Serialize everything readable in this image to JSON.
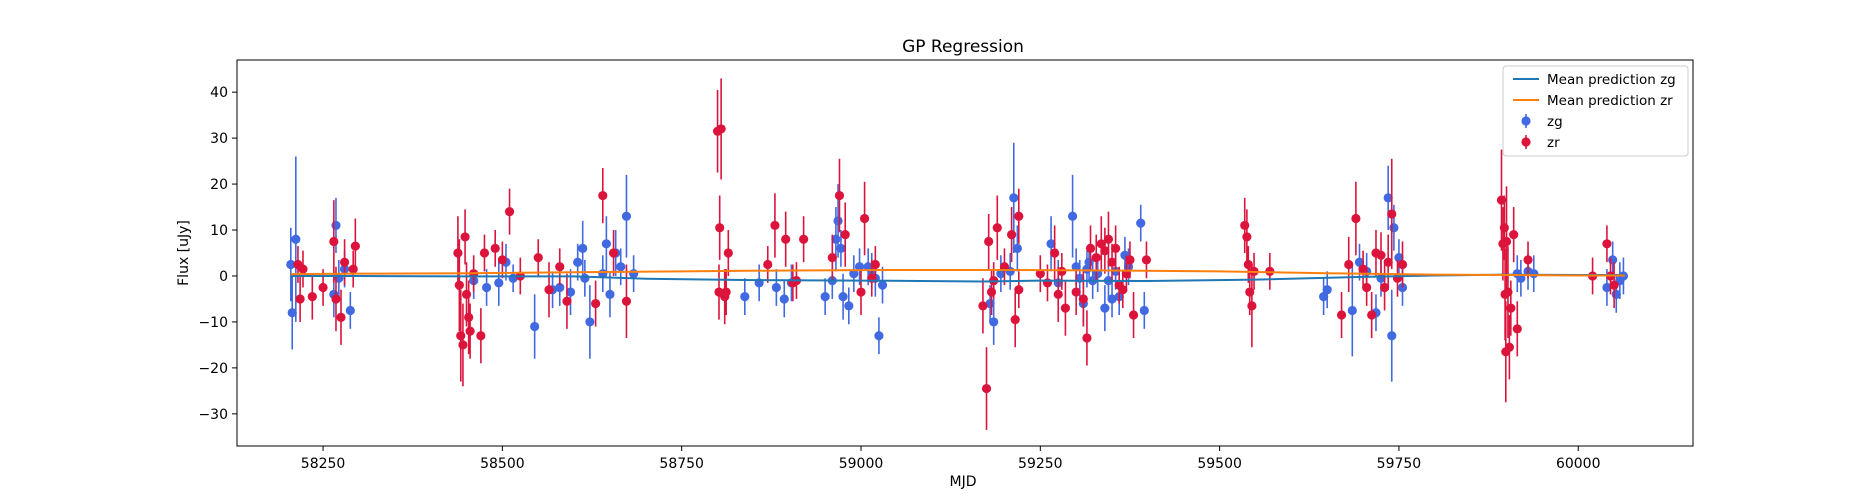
{
  "chart_data": {
    "type": "scatter",
    "title": "GP Regression",
    "xlabel": "MJD",
    "ylabel": "Flux [uJy]",
    "xlim": [
      58130,
      60160
    ],
    "ylim": [
      -37,
      47
    ],
    "xticks": [
      58250,
      58500,
      58750,
      59000,
      59250,
      59500,
      59750,
      60000
    ],
    "yticks": [
      -30,
      -20,
      -10,
      0,
      10,
      20,
      30,
      40
    ],
    "grid": false,
    "legend_position": "top-right",
    "lines": [
      {
        "name": "Mean prediction zg",
        "color": "#1f77b4",
        "x": [
          58205,
          58300,
          58450,
          58600,
          58700,
          58850,
          59000,
          59170,
          59250,
          59400,
          59550,
          59700,
          59800,
          59900,
          60000,
          60065
        ],
        "y": [
          0.0,
          0.0,
          -0.1,
          -0.1,
          -0.6,
          -0.9,
          -1.0,
          -1.2,
          -1.0,
          -1.1,
          -0.8,
          -0.2,
          0.1,
          0.3,
          0.2,
          0.2
        ]
      },
      {
        "name": "Mean prediction zr",
        "color": "#ff7f0e",
        "x": [
          58205,
          58300,
          58450,
          58600,
          58750,
          58900,
          59050,
          59200,
          59350,
          59500,
          59650,
          59800,
          59900,
          60000,
          60065
        ],
        "y": [
          0.4,
          0.5,
          0.6,
          0.8,
          1.0,
          1.2,
          1.3,
          1.3,
          1.2,
          1.0,
          0.6,
          0.3,
          0.2,
          0.1,
          0.1
        ]
      }
    ],
    "series": [
      {
        "name": "zg",
        "color": "#4169e1",
        "marker": "o",
        "points": [
          [
            58205,
            2.5,
            8
          ],
          [
            58207,
            -8,
            8
          ],
          [
            58212,
            8,
            18
          ],
          [
            58265,
            -4,
            5
          ],
          [
            58268,
            11,
            6
          ],
          [
            58272,
            -0.5,
            4
          ],
          [
            58280,
            1.5,
            4
          ],
          [
            58288,
            -7.5,
            4
          ],
          [
            58460,
            -1,
            4
          ],
          [
            58478,
            -2.5,
            4
          ],
          [
            58495,
            -1.5,
            5
          ],
          [
            58505,
            3,
            4
          ],
          [
            58515,
            -0.5,
            3
          ],
          [
            58545,
            -11,
            7
          ],
          [
            58570,
            -3,
            4
          ],
          [
            58580,
            -2.5,
            4
          ],
          [
            58595,
            -3.5,
            5
          ],
          [
            58605,
            3,
            4
          ],
          [
            58612,
            6,
            6
          ],
          [
            58615,
            -0.5,
            4
          ],
          [
            58622,
            -10,
            8
          ],
          [
            58640,
            0.5,
            4
          ],
          [
            58645,
            7,
            6
          ],
          [
            58650,
            -4,
            5
          ],
          [
            58658,
            5,
            5
          ],
          [
            58665,
            2,
            4
          ],
          [
            58673,
            13,
            9
          ],
          [
            58683,
            0.5,
            4
          ],
          [
            58838,
            -4.5,
            4
          ],
          [
            58858,
            -1.5,
            4
          ],
          [
            58882,
            -2.5,
            4
          ],
          [
            58893,
            -5,
            4
          ],
          [
            58903,
            -1.5,
            4
          ],
          [
            58950,
            -4.5,
            4
          ],
          [
            58960,
            -1,
            4
          ],
          [
            58965,
            8,
            7
          ],
          [
            58968,
            12,
            8
          ],
          [
            58972,
            6,
            4
          ],
          [
            58975,
            -4.5,
            5
          ],
          [
            58983,
            -6.5,
            4
          ],
          [
            58990,
            0.5,
            4
          ],
          [
            58998,
            2,
            4
          ],
          [
            59010,
            2,
            4
          ],
          [
            59015,
            1,
            4
          ],
          [
            59020,
            -0.5,
            4
          ],
          [
            59025,
            -13,
            4
          ],
          [
            59030,
            -2,
            4
          ],
          [
            59180,
            -6,
            4
          ],
          [
            59185,
            -10,
            5
          ],
          [
            59195,
            0.5,
            4
          ],
          [
            59208,
            1,
            4
          ],
          [
            59213,
            17,
            12
          ],
          [
            59218,
            6,
            5
          ],
          [
            59265,
            7,
            6
          ],
          [
            59275,
            -1.5,
            5
          ],
          [
            59295,
            13,
            9
          ],
          [
            59300,
            2,
            4
          ],
          [
            59305,
            -0.5,
            4
          ],
          [
            59310,
            -6,
            5
          ],
          [
            59315,
            1.5,
            4
          ],
          [
            59318,
            3,
            4
          ],
          [
            59323,
            -1,
            4
          ],
          [
            59330,
            0.5,
            4
          ],
          [
            59340,
            -7,
            5
          ],
          [
            59345,
            -1,
            4
          ],
          [
            59350,
            -5,
            4
          ],
          [
            59355,
            1,
            4
          ],
          [
            59360,
            -4.5,
            4
          ],
          [
            59368,
            4.5,
            4
          ],
          [
            59373,
            2,
            4
          ],
          [
            59390,
            11.5,
            4
          ],
          [
            59395,
            -7.5,
            4
          ],
          [
            59645,
            -4.5,
            4
          ],
          [
            59650,
            -3,
            4
          ],
          [
            59685,
            -7.5,
            10
          ],
          [
            59695,
            3,
            4
          ],
          [
            59705,
            1,
            4
          ],
          [
            59718,
            -8,
            4
          ],
          [
            59725,
            -0.5,
            4
          ],
          [
            59735,
            17,
            7
          ],
          [
            59740,
            -13,
            10
          ],
          [
            59743,
            10.5,
            5
          ],
          [
            59750,
            4,
            4
          ],
          [
            59755,
            -2.5,
            4
          ],
          [
            59915,
            0.5,
            4
          ],
          [
            59920,
            -0.5,
            4
          ],
          [
            59930,
            1,
            4
          ],
          [
            59938,
            0.5,
            4
          ],
          [
            60040,
            -2.5,
            4
          ],
          [
            60048,
            3.5,
            4
          ],
          [
            60053,
            -4,
            4
          ],
          [
            60058,
            -1,
            4
          ],
          [
            60063,
            0,
            4
          ]
        ]
      },
      {
        "name": "zr",
        "color": "#dc143c",
        "marker": "o",
        "points": [
          [
            58215,
            2.5,
            4
          ],
          [
            58222,
            1.5,
            4
          ],
          [
            58218,
            -5,
            5
          ],
          [
            58235,
            -4.5,
            5
          ],
          [
            58250,
            -2.5,
            4
          ],
          [
            58265,
            7.5,
            9
          ],
          [
            58268,
            -5,
            7
          ],
          [
            58275,
            -9,
            6
          ],
          [
            58280,
            3,
            5
          ],
          [
            58292,
            1.5,
            4
          ],
          [
            58295,
            6.5,
            6
          ],
          [
            58438,
            5,
            8
          ],
          [
            58440,
            -2,
            10
          ],
          [
            58442,
            -13,
            10
          ],
          [
            58445,
            -15,
            9
          ],
          [
            58448,
            8.5,
            6
          ],
          [
            58450,
            -4,
            7
          ],
          [
            58453,
            -9,
            8
          ],
          [
            58455,
            -12,
            6
          ],
          [
            58460,
            0.5,
            4
          ],
          [
            58470,
            -13,
            6
          ],
          [
            58475,
            5,
            4
          ],
          [
            58490,
            6,
            4
          ],
          [
            58500,
            3.5,
            4
          ],
          [
            58510,
            14,
            5
          ],
          [
            58525,
            0,
            4
          ],
          [
            58550,
            4,
            4
          ],
          [
            58565,
            -3,
            6
          ],
          [
            58580,
            2,
            4
          ],
          [
            58590,
            -5.5,
            6
          ],
          [
            58630,
            -6,
            5
          ],
          [
            58640,
            17.5,
            6
          ],
          [
            58655,
            5,
            5
          ],
          [
            58673,
            -5.5,
            8
          ],
          [
            58800,
            31.5,
            9
          ],
          [
            58805,
            32,
            11
          ],
          [
            58803,
            10.5,
            7
          ],
          [
            58802,
            -3.5,
            6
          ],
          [
            58810,
            -4.5,
            6
          ],
          [
            58812,
            -3.5,
            5
          ],
          [
            58815,
            5,
            5
          ],
          [
            58870,
            2.5,
            4
          ],
          [
            58880,
            11,
            7
          ],
          [
            58895,
            8,
            6
          ],
          [
            58905,
            -1.5,
            4
          ],
          [
            58910,
            -1,
            4
          ],
          [
            58920,
            8,
            5
          ],
          [
            58960,
            4,
            5
          ],
          [
            58970,
            17.5,
            8
          ],
          [
            58978,
            9,
            7
          ],
          [
            59000,
            -3.5,
            5
          ],
          [
            59005,
            12.5,
            8
          ],
          [
            59015,
            -0.5,
            4
          ],
          [
            59020,
            2.5,
            4
          ],
          [
            59175,
            -24.5,
            9
          ],
          [
            59170,
            -6.5,
            6
          ],
          [
            59178,
            7.5,
            6
          ],
          [
            59182,
            -3.5,
            5
          ],
          [
            59185,
            -1,
            4
          ],
          [
            59190,
            10.5,
            7
          ],
          [
            59200,
            2,
            4
          ],
          [
            59210,
            9,
            6
          ],
          [
            59220,
            13,
            6
          ],
          [
            59215,
            -9.5,
            6
          ],
          [
            59220,
            -3,
            4
          ],
          [
            59250,
            0.5,
            4
          ],
          [
            59260,
            -1.5,
            4
          ],
          [
            59270,
            5,
            6
          ],
          [
            59275,
            -4,
            6
          ],
          [
            59280,
            1,
            4
          ],
          [
            59285,
            -7,
            6
          ],
          [
            59300,
            -3.5,
            5
          ],
          [
            59310,
            -5,
            6
          ],
          [
            59315,
            -13.5,
            6
          ],
          [
            59320,
            6,
            5
          ],
          [
            59328,
            4,
            5
          ],
          [
            59335,
            7,
            6
          ],
          [
            59340,
            5.5,
            5
          ],
          [
            59345,
            8,
            6
          ],
          [
            59350,
            3,
            4
          ],
          [
            59355,
            6,
            5
          ],
          [
            59360,
            -2,
            4
          ],
          [
            59365,
            -3,
            4
          ],
          [
            59370,
            0.5,
            4
          ],
          [
            59375,
            3.5,
            4
          ],
          [
            59380,
            -8.5,
            5
          ],
          [
            59398,
            3.5,
            4
          ],
          [
            59535,
            11,
            6
          ],
          [
            59538,
            8.5,
            6
          ],
          [
            59540,
            2.5,
            4
          ],
          [
            59542,
            -3.5,
            5
          ],
          [
            59545,
            -6.5,
            9
          ],
          [
            59548,
            1,
            4
          ],
          [
            59570,
            1,
            4
          ],
          [
            59670,
            -8.5,
            5
          ],
          [
            59680,
            2.5,
            6
          ],
          [
            59690,
            12.5,
            8
          ],
          [
            59700,
            1.5,
            4
          ],
          [
            59705,
            -2.5,
            4
          ],
          [
            59712,
            -8.5,
            5
          ],
          [
            59718,
            5,
            5
          ],
          [
            59725,
            4.5,
            5
          ],
          [
            59730,
            -2.5,
            5
          ],
          [
            59735,
            3,
            6
          ],
          [
            59740,
            13.5,
            12
          ],
          [
            59748,
            -0.5,
            4
          ],
          [
            59755,
            2.5,
            5
          ],
          [
            59893,
            16.5,
            11
          ],
          [
            59895,
            7,
            8
          ],
          [
            59897,
            10.5,
            7
          ],
          [
            59898,
            -4,
            10
          ],
          [
            59899,
            -16.5,
            11
          ],
          [
            59900,
            7.5,
            12
          ],
          [
            59902,
            -3.5,
            10
          ],
          [
            59904,
            -15.5,
            7
          ],
          [
            59906,
            -7,
            6
          ],
          [
            59910,
            9,
            6
          ],
          [
            59915,
            -11.5,
            6
          ],
          [
            59930,
            3.5,
            4
          ],
          [
            60020,
            0,
            4
          ],
          [
            60040,
            7,
            4
          ],
          [
            60045,
            0,
            4
          ],
          [
            60050,
            -2,
            5
          ]
        ]
      }
    ]
  }
}
